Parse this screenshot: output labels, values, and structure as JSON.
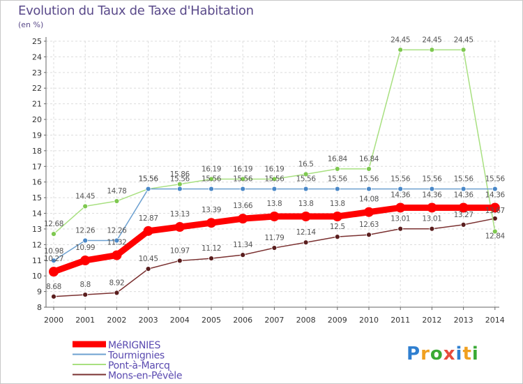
{
  "header": {
    "title": "Evolution du Taux de Taxe d'Habitation",
    "unit": "(en %)"
  },
  "brand": {
    "name": "Proxiti",
    "letters": [
      {
        "char": "P",
        "color": "#2f7fd0"
      },
      {
        "char": "r",
        "color": "#f0a020"
      },
      {
        "char": "o",
        "color": "#3aaa35"
      },
      {
        "char": "x",
        "color": "#e84c3c"
      },
      {
        "char": "i",
        "color": "#2f7fd0"
      },
      {
        "char": "t",
        "color": "#f0a020"
      },
      {
        "char": "i",
        "color": "#3aaa35"
      }
    ]
  },
  "chart_data": {
    "type": "line",
    "title": "Evolution du Taux de Taxe d'Habitation",
    "ylabel": "(en %)",
    "xlabel": "",
    "x": [
      "2000",
      "2001",
      "2002",
      "2003",
      "2004",
      "2005",
      "2006",
      "2007",
      "2008",
      "2009",
      "2010",
      "2011",
      "2012",
      "2013",
      "2014"
    ],
    "ylim": [
      8,
      25
    ],
    "yticks": [
      "8",
      "9",
      "10",
      "11",
      "12",
      "13",
      "14",
      "15",
      "16",
      "17",
      "18",
      "19",
      "20",
      "21",
      "22",
      "23",
      "24",
      "25"
    ],
    "grid": true,
    "legend_position": "bottom-left",
    "series": [
      {
        "name": "MéRIGNIES",
        "color": "#ff0000",
        "point_color": "#ff0000",
        "values": [
          10.27,
          10.99,
          11.32,
          12.87,
          13.13,
          13.39,
          13.66,
          13.8,
          13.8,
          13.8,
          14.08,
          14.36,
          14.36,
          14.36,
          14.36
        ],
        "labels": [
          "10.27",
          "10.99",
          "11.32",
          "12.87",
          "13.13",
          "13.39",
          "13.66",
          "13.8",
          "13.8",
          "13.8",
          "14.08",
          "14.36",
          "14.36",
          "14.36",
          "14.36"
        ]
      },
      {
        "name": "Tourmignies",
        "color": "#6ca0d0",
        "point_color": "#4a88c8",
        "values": [
          10.98,
          12.26,
          12.26,
          15.56,
          15.56,
          15.56,
          15.56,
          15.56,
          15.56,
          15.56,
          15.56,
          15.56,
          15.56,
          15.56,
          15.56
        ],
        "labels": [
          "10.98",
          "12.26",
          "12.26",
          "15.56",
          "15.56",
          "15.56",
          "15.56",
          "15.56",
          "15.56",
          "15.56",
          "15.56",
          "15.56",
          "15.56",
          "15.56",
          "15.56"
        ]
      },
      {
        "name": "Pont-à-Marcq",
        "color": "#a8e080",
        "point_color": "#7ec850",
        "values": [
          12.68,
          14.45,
          14.78,
          15.56,
          15.86,
          16.19,
          16.19,
          16.19,
          16.5,
          16.84,
          16.84,
          24.45,
          24.45,
          24.45,
          12.84
        ],
        "labels": [
          "12.68",
          "14.45",
          "14.78",
          "15.56",
          "15.86",
          "16.19",
          "16.19",
          "16.19",
          "16.5",
          "16.84",
          "16.84",
          "24.45",
          "24.45",
          "24.45",
          "12.84"
        ]
      },
      {
        "name": "Mons-en-Pévèle",
        "color": "#7a3030",
        "point_color": "#5a1e1e",
        "values": [
          8.68,
          8.8,
          8.92,
          10.45,
          10.97,
          11.12,
          11.34,
          11.79,
          12.14,
          12.5,
          12.63,
          13.01,
          13.01,
          13.27,
          13.67
        ],
        "labels": [
          "8.68",
          "8.8",
          "8.92",
          "10.45",
          "10.97",
          "11.12",
          "11.34",
          "11.79",
          "12.14",
          "12.5",
          "12.63",
          "13.01",
          "13.01",
          "13.27",
          "13.67"
        ]
      }
    ]
  }
}
